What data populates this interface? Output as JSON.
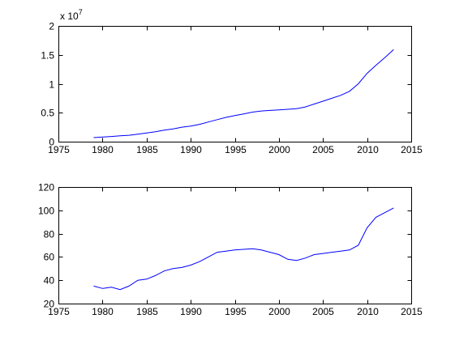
{
  "chart_data": [
    {
      "type": "line",
      "title": "",
      "xlabel": "",
      "ylabel": "",
      "xlim": [
        1975,
        2015
      ],
      "ylim": [
        0,
        2
      ],
      "exponent_base": "x 10",
      "exponent_power": "7",
      "xticks": [
        1975,
        1980,
        1985,
        1990,
        1995,
        2000,
        2005,
        2010,
        2015
      ],
      "yticks": [
        0,
        0.5,
        1,
        1.5,
        2
      ],
      "xtick_labels": [
        "1975",
        "1980",
        "1985",
        "1990",
        "1995",
        "2000",
        "2005",
        "2010",
        "2015"
      ],
      "ytick_labels": [
        "0",
        "0.5",
        "1",
        "1.5",
        "2"
      ],
      "grid": false,
      "color": "#0000ff",
      "x": [
        1979,
        1980,
        1981,
        1982,
        1983,
        1984,
        1985,
        1986,
        1987,
        1988,
        1989,
        1990,
        1991,
        1992,
        1993,
        1994,
        1995,
        1996,
        1997,
        1998,
        1999,
        2000,
        2001,
        2002,
        2003,
        2004,
        2005,
        2006,
        2007,
        2008,
        2009,
        2010,
        2011,
        2012,
        2013
      ],
      "y": [
        0.07,
        0.08,
        0.09,
        0.1,
        0.11,
        0.13,
        0.15,
        0.17,
        0.2,
        0.22,
        0.25,
        0.27,
        0.3,
        0.34,
        0.38,
        0.42,
        0.45,
        0.48,
        0.51,
        0.53,
        0.54,
        0.55,
        0.56,
        0.57,
        0.6,
        0.65,
        0.7,
        0.75,
        0.8,
        0.87,
        1.0,
        1.18,
        1.32,
        1.45,
        1.59
      ]
    },
    {
      "type": "line",
      "title": "",
      "xlabel": "",
      "ylabel": "",
      "xlim": [
        1975,
        2015
      ],
      "ylim": [
        20,
        120
      ],
      "xticks": [
        1975,
        1980,
        1985,
        1990,
        1995,
        2000,
        2005,
        2010,
        2015
      ],
      "yticks": [
        20,
        40,
        60,
        80,
        100,
        120
      ],
      "xtick_labels": [
        "1975",
        "1980",
        "1985",
        "1990",
        "1995",
        "2000",
        "2005",
        "2010",
        "2015"
      ],
      "ytick_labels": [
        "20",
        "40",
        "60",
        "80",
        "100",
        "120"
      ],
      "grid": false,
      "color": "#0000ff",
      "x": [
        1979,
        1980,
        1981,
        1982,
        1983,
        1984,
        1985,
        1986,
        1987,
        1988,
        1989,
        1990,
        1991,
        1992,
        1993,
        1994,
        1995,
        1996,
        1997,
        1998,
        1999,
        2000,
        2001,
        2002,
        2003,
        2004,
        2005,
        2006,
        2007,
        2008,
        2009,
        2010,
        2011,
        2012,
        2013
      ],
      "y": [
        35,
        33,
        34,
        32,
        35,
        40,
        41,
        44,
        48,
        50,
        51,
        53,
        56,
        60,
        64,
        65,
        66,
        66.5,
        67,
        66,
        64,
        62,
        58,
        57,
        59,
        62,
        63,
        64,
        65,
        66,
        70,
        85,
        94,
        98,
        102
      ]
    }
  ]
}
